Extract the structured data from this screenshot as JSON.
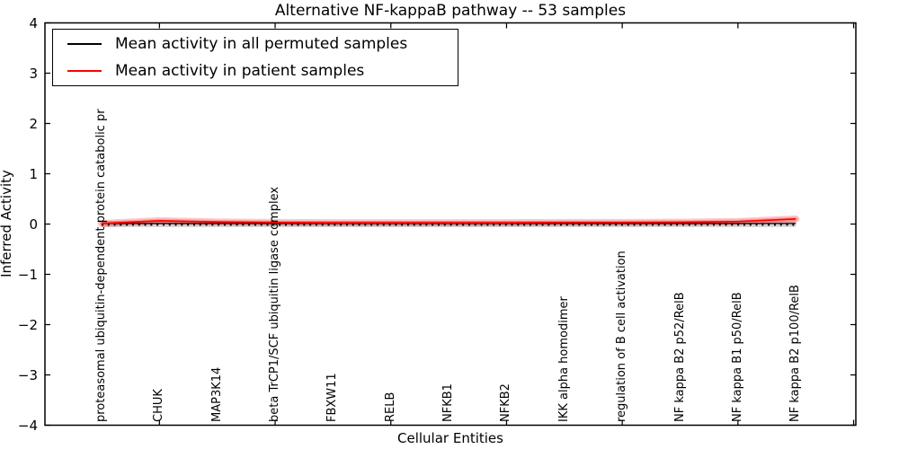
{
  "title": "Alternative NF-kappaB pathway -- 53 samples",
  "axes": {
    "xlabel": "Cellular Entities",
    "ylabel": "Inferred Activity",
    "ytick_labels": [
      "4",
      "3",
      "2",
      "1",
      "0",
      "−1",
      "−2",
      "−3",
      "−4"
    ],
    "ytick_values": [
      4,
      3,
      2,
      1,
      0,
      -1,
      -2,
      -3,
      -4
    ]
  },
  "legend": {
    "items": [
      {
        "label": "Mean activity in all permuted samples",
        "color": "#000000"
      },
      {
        "label": "Mean activity in patient samples",
        "color": "#ff0000"
      }
    ]
  },
  "chart_data": {
    "type": "line",
    "title": "Alternative NF-kappaB pathway -- 53 samples",
    "xlabel": "Cellular Entities",
    "ylabel": "Inferred Activity",
    "ylim": [
      -4,
      4
    ],
    "grid": false,
    "legend_position": "upper left",
    "categories": [
      "proteasomal ubiquitin-dependent protein catabolic pr",
      "CHUK",
      "MAP3K14",
      "beta TrCP1/SCF ubiquitin ligase complex",
      "FBXW11",
      "RELB",
      "NFKB1",
      "NFKB2",
      "IKK alpha homodimer",
      "regulation of B cell activation",
      "NF kappa B2 p52/RelB",
      "NF kappa B1 p50/RelB",
      "NF kappa B2 p100/RelB"
    ],
    "series": [
      {
        "name": "Mean activity in all permuted samples",
        "color": "#000000",
        "style": "solid",
        "values": [
          0,
          0,
          0,
          0,
          0,
          0,
          0,
          0,
          0,
          0,
          0,
          0,
          0
        ]
      },
      {
        "name": "Mean activity in patient samples",
        "color": "#ff0000",
        "style": "solid",
        "values": [
          0.01,
          0.065,
          0.04,
          0.03,
          0.025,
          0.025,
          0.025,
          0.025,
          0.03,
          0.03,
          0.035,
          0.05,
          0.1
        ]
      }
    ],
    "zero_line": {
      "value": 0,
      "style": "dotted",
      "color": "#000000"
    },
    "bands": [
      {
        "around": "Mean activity in all permuted samples",
        "halfwidth": 0.06,
        "color": "#d5d5d5"
      },
      {
        "around": "Mean activity in patient samples",
        "halfwidth": 0.05,
        "color": "rgba(255,0,0,0.22)"
      }
    ]
  },
  "colors": {
    "background": "#ffffff",
    "spine": "#000000",
    "permuted_line": "#000000",
    "patient_line": "#ff0000",
    "gray_band": "#d5d5d5"
  }
}
